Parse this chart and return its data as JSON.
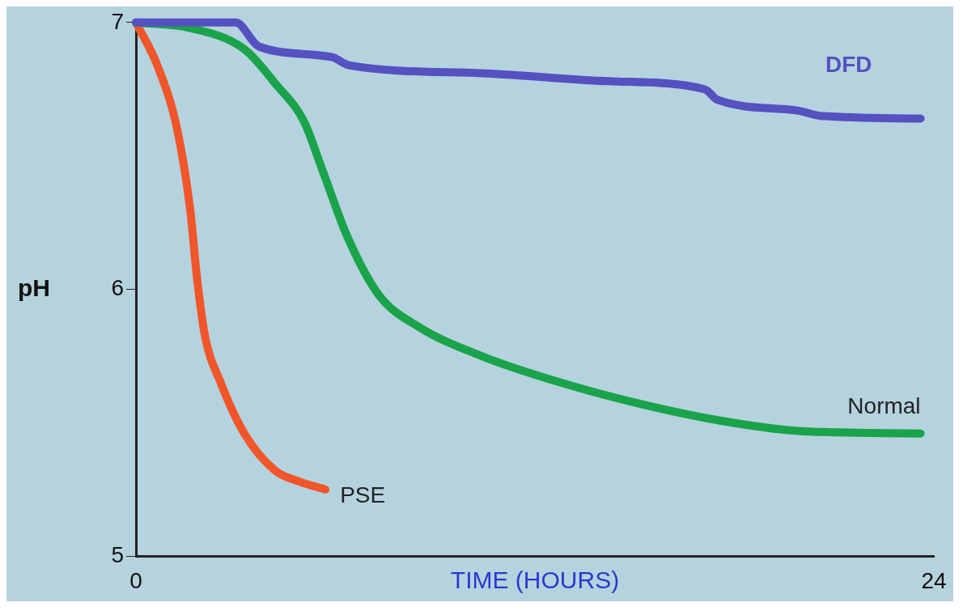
{
  "chart_data": {
    "type": "line",
    "xlabel": "TIME (HOURS)",
    "ylabel": "pH",
    "xlim": [
      0,
      24
    ],
    "xticks": [
      0,
      24
    ],
    "ylim": [
      5,
      7
    ],
    "yticks": [
      5,
      6,
      7
    ],
    "grid": false,
    "legend": false,
    "marker": "none",
    "line_style": "solid",
    "series": [
      {
        "name": "DFD",
        "color": "#5551c0",
        "x": [
          0,
          3,
          3.7,
          5.9,
          6.4,
          10.4,
          14.2,
          17.1,
          17.5,
          19.9,
          20.6,
          23.6
        ],
        "values": [
          7.0,
          7.0,
          6.91,
          6.87,
          6.84,
          6.81,
          6.78,
          6.75,
          6.71,
          6.67,
          6.65,
          6.64
        ]
      },
      {
        "name": "Normal",
        "color": "#1aa34a",
        "x": [
          0,
          1.6,
          3.26,
          4.2,
          5.05,
          5.6,
          6.35,
          7.3,
          8.5,
          10.4,
          12.8,
          15.2,
          17.5,
          19.9,
          23.6
        ],
        "values": [
          7.0,
          6.98,
          6.9,
          6.77,
          6.63,
          6.45,
          6.2,
          5.98,
          5.86,
          5.75,
          5.65,
          5.57,
          5.51,
          5.47,
          5.46
        ]
      },
      {
        "name": "PSE",
        "color": "#f0562a",
        "x": [
          0,
          0.64,
          1.24,
          1.64,
          1.83,
          2.07,
          2.55,
          3.26,
          4.2,
          4.92,
          5.7
        ],
        "values": [
          7.0,
          6.84,
          6.6,
          6.29,
          6.05,
          5.83,
          5.65,
          5.46,
          5.32,
          5.28,
          5.25
        ]
      }
    ]
  }
}
